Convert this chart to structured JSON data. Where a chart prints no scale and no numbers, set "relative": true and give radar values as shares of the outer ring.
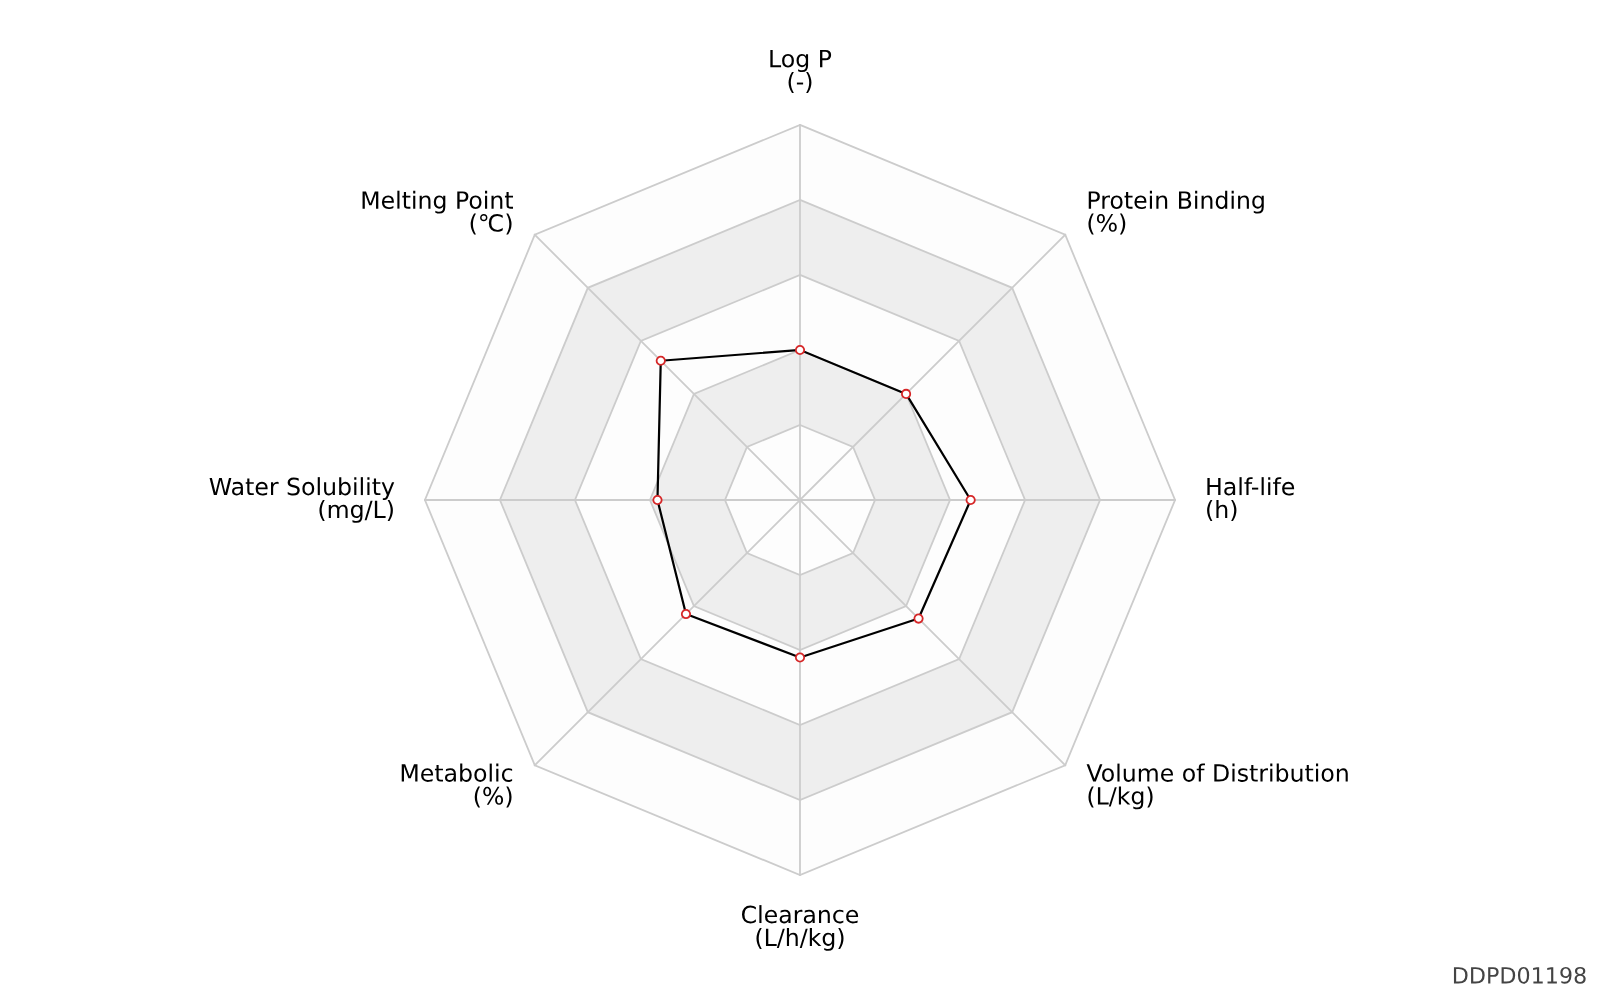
{
  "chart_data": {
    "type": "radar",
    "relative": true,
    "categories": [
      "Log P\n(-)",
      "Protein Binding\n(%)",
      "Half-life\n(h)",
      "Volume of Distribution\n(L/kg)",
      "Clearance\n(L/h/kg)",
      "Metabolic\n(%)",
      "Water Solubility\n(mg/L)",
      "Melting Point\n(℃)"
    ],
    "series": [
      {
        "color": "#000000",
        "values": [
          0.4,
          0.4,
          0.455,
          0.447,
          0.42,
          0.43,
          0.38,
          0.525
        ]
      }
    ],
    "marker": "circle",
    "grid": true,
    "annotations": [
      "DDPD01198"
    ]
  }
}
